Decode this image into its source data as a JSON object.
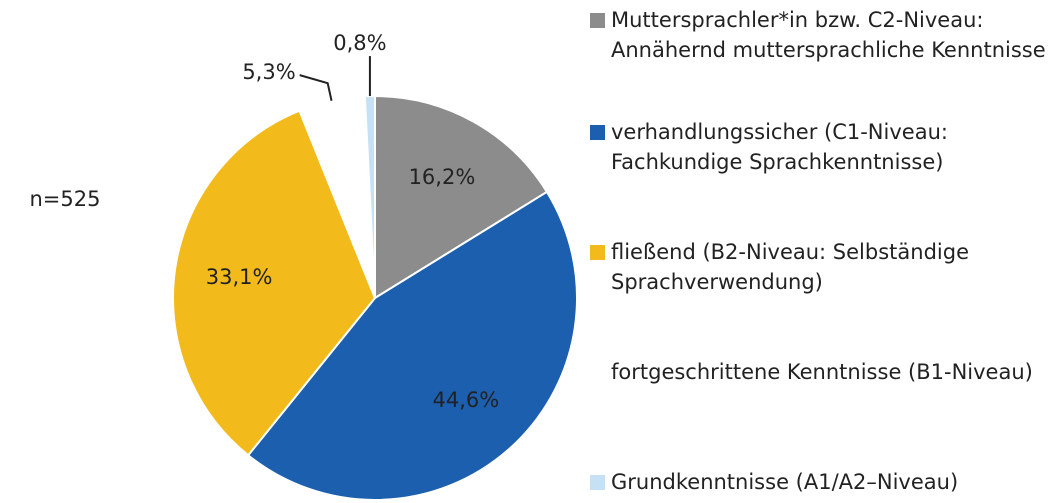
{
  "chart_data": {
    "type": "pie",
    "annotation": "n=525",
    "categories": [
      "Muttersprachler*in bzw. C2-Niveau: Annähernd muttersprachliche Kenntnisse",
      "verhandlungssicher (C1-Niveau: Fachkundige Sprachkenntnisse)",
      "fließend (B2-Niveau: Selbständige Sprachverwendung)",
      "fortgeschrittene Kenntnisse (B1-Niveau)",
      "Grundkenntnisse (A1/A2–Niveau)"
    ],
    "values": [
      16.2,
      44.6,
      33.1,
      5.3,
      0.8
    ],
    "value_labels": [
      "16,2%",
      "44,6%",
      "33,1%",
      "5,3%",
      "0,8%"
    ],
    "colors": [
      "#8c8c8c",
      "#1b5fae",
      "#f2bb1b",
      "#ffffff",
      "#c6e0f6"
    ]
  }
}
